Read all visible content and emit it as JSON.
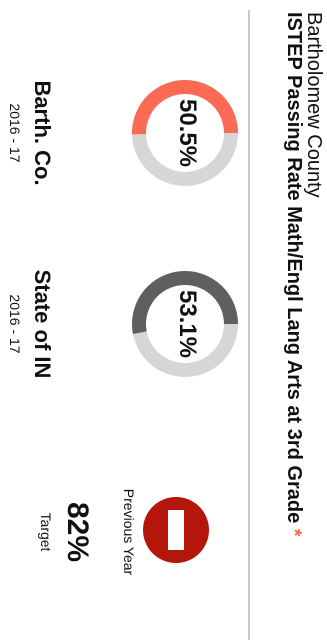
{
  "header": {
    "subtitle": "Bartholomew County",
    "title": "ISTEP Passing Rate Math/Engl Lang Arts at 3rd Grade",
    "required_mark": "*"
  },
  "metrics": [
    {
      "value_text": "50.5%",
      "value": 50.5,
      "label": "Barth. Co.",
      "period": "2016 - 17",
      "color": "#fb6a55"
    },
    {
      "value_text": "53.1%",
      "value": 53.1,
      "label": "State of IN",
      "period": "2016 - 17",
      "color": "#5f5f5f"
    }
  ],
  "trend": {
    "icon": "no-entry-icon",
    "label": "Previous Year",
    "color": "#b5160c"
  },
  "target": {
    "value": "82%",
    "label": "Target"
  }
}
